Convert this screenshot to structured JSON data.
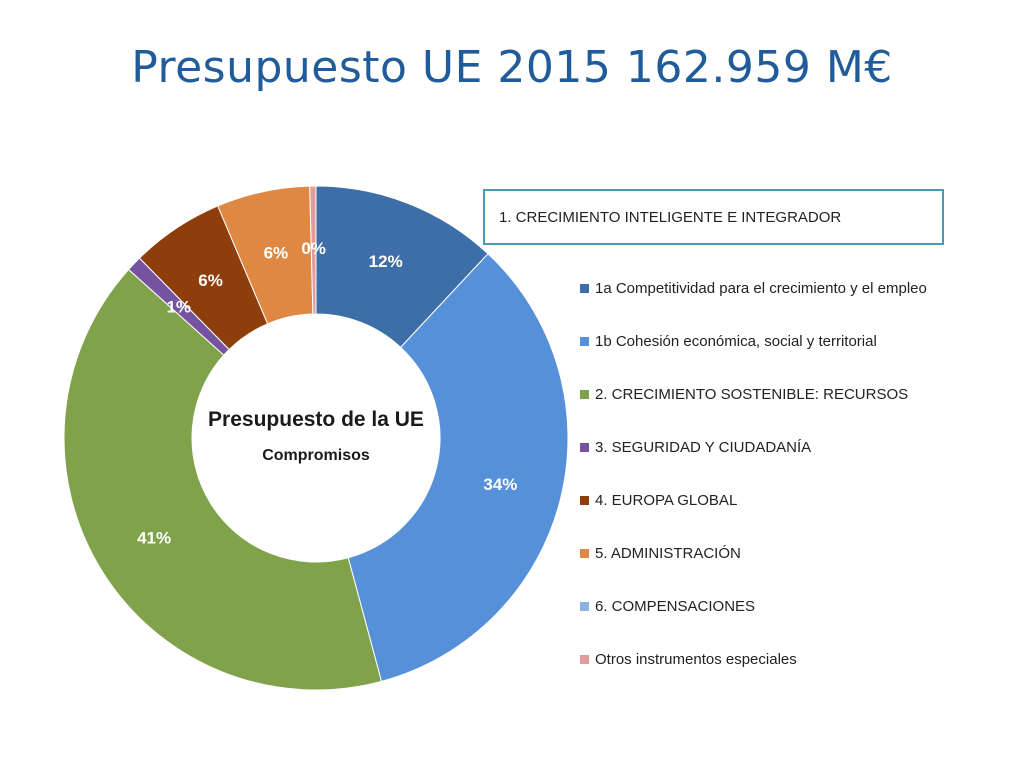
{
  "slide": {
    "title": "Presupuesto UE 2015 162.959 M€"
  },
  "chart_data": {
    "type": "pie",
    "donut": true,
    "center_title": "Presupuesto de la UE",
    "center_subtitle": "Compromisos",
    "legend_header": "1. CRECIMIENTO INTELIGENTE E INTEGRADOR",
    "legend_position": "right",
    "slices": [
      {
        "label": "1a Competitividad para el crecimiento y el empleo",
        "value": 12,
        "display": "12%",
        "color": "#3e6ea7"
      },
      {
        "label": "1b Cohesión económica, social y territorial",
        "value": 34,
        "display": "34%",
        "color": "#5690d9"
      },
      {
        "label": "2. CRECIMIENTO SOSTENIBLE: RECURSOS",
        "value": 41,
        "display": "41%",
        "color": "#7fa24a"
      },
      {
        "label": "3. SEGURIDAD Y CIUDADANÍA",
        "value": 1,
        "display": "1%",
        "color": "#7653a0"
      },
      {
        "label": "4. EUROPA GLOBAL",
        "value": 6,
        "display": "6%",
        "color": "#8e3e0a"
      },
      {
        "label": "5. ADMINISTRACIÓN",
        "value": 6,
        "display": "6%",
        "color": "#df8844"
      },
      {
        "label": "6. COMPENSACIONES",
        "value": 0,
        "display": "",
        "color": "#8eb2de"
      },
      {
        "label": "Otros instrumentos especiales",
        "value": 0.4,
        "display": "0%",
        "color": "#e49b9b"
      }
    ]
  }
}
